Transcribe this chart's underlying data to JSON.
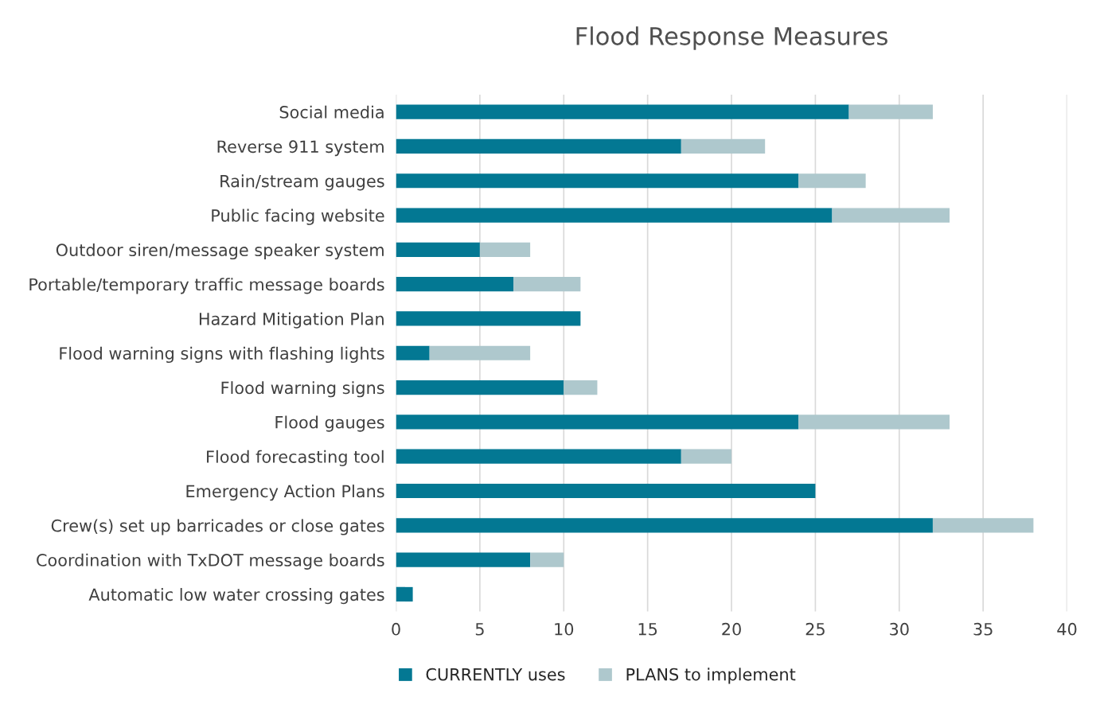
{
  "chart_data": {
    "type": "bar",
    "orientation": "horizontal",
    "stacked": true,
    "title": "Flood Response Measures",
    "categories": [
      "Social media",
      "Reverse 911 system",
      "Rain/stream gauges",
      "Public facing website",
      "Outdoor siren/message speaker system",
      "Portable/temporary traffic message boards",
      "Hazard Mitigation Plan",
      "Flood warning signs with flashing lights",
      "Flood warning signs",
      "Flood gauges",
      "Flood forecasting tool",
      "Emergency Action Plans",
      "Crew(s) set up barricades or close gates",
      "Coordination with TxDOT message boards",
      "Automatic low water crossing gates"
    ],
    "series": [
      {
        "name": "CURRENTLY uses",
        "color": "#037893",
        "values": [
          27,
          17,
          24,
          26,
          5,
          7,
          11,
          2,
          10,
          24,
          17,
          25,
          32,
          8,
          1
        ]
      },
      {
        "name": "PLANS to implement",
        "color": "#aec8cd",
        "values": [
          5,
          5,
          4,
          7,
          3,
          4,
          0,
          6,
          2,
          9,
          3,
          0,
          6,
          2,
          0
        ]
      }
    ],
    "xlim": [
      0,
      40
    ],
    "xticks": [
      0,
      5,
      10,
      15,
      20,
      25,
      30,
      35,
      40
    ],
    "grid": "x",
    "legend": "bottom"
  }
}
